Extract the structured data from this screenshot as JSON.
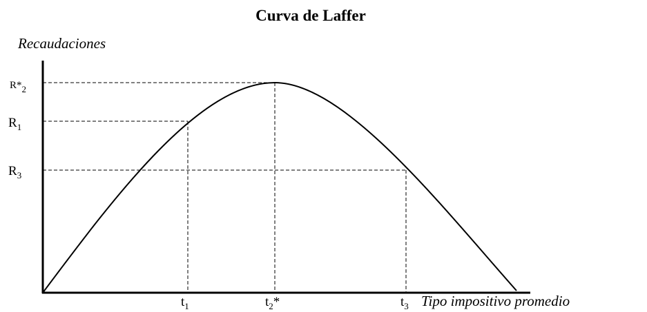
{
  "title": "Curva de Laffer",
  "y_axis_label": "Recaudaciones",
  "x_axis_label": "Tipo impositivo promedio",
  "y_labels": [
    {
      "main": "R*",
      "sub": "2"
    },
    {
      "main": "R",
      "sub": "1"
    },
    {
      "main": "R",
      "sub": "3"
    }
  ],
  "x_labels": [
    {
      "main": "t",
      "sub": "1"
    },
    {
      "main": "t",
      "sub": "2",
      "suffix": "*"
    },
    {
      "main": "t",
      "sub": "3"
    }
  ]
}
